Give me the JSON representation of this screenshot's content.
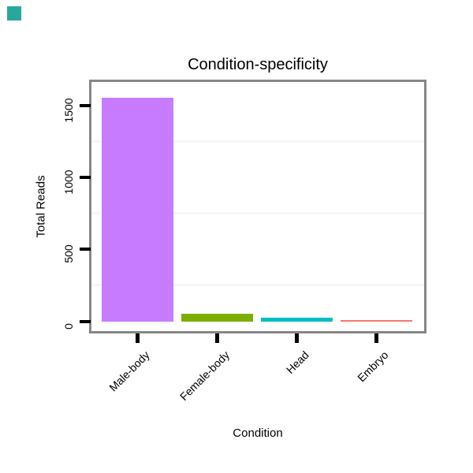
{
  "corner_marker": {
    "color": "#2aa79b"
  },
  "chart_data": {
    "type": "bar",
    "title": "Condition-specificity",
    "xlabel": "Condition",
    "ylabel": "Total Reads",
    "categories": [
      "Male-body",
      "Female-body",
      "Head",
      "Embryo"
    ],
    "values": [
      1560,
      56,
      32,
      14
    ],
    "bar_colors": [
      "#c77cff",
      "#7cae00",
      "#00bfc4",
      "#f8766d"
    ],
    "y_ticks": [
      0,
      500,
      1000,
      1500
    ],
    "y_minor_gridlines": [
      250,
      750,
      1250
    ],
    "ylim": [
      0,
      1640
    ],
    "legend": "none",
    "grid": "minor-horizontal-only",
    "panel_border_color": "#878787",
    "minor_grid_color": "#f7f7f7",
    "tick_color": "#000000",
    "x_label_rotation_deg": 45,
    "background": "#ffffff"
  }
}
